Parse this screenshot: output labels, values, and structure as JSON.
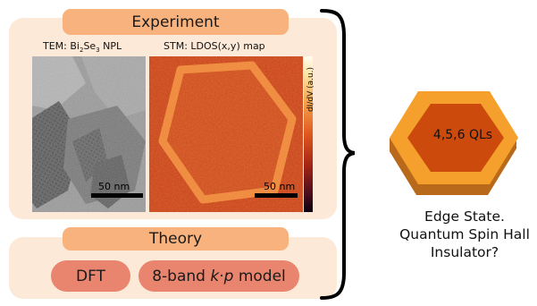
{
  "experiment": {
    "title": "Experiment",
    "tem_caption_pre": "TEM: Bi",
    "tem_caption_sub1": "2",
    "tem_caption_mid": "Se",
    "tem_caption_sub2": "3",
    "tem_caption_post": " NPL",
    "stm_caption": "STM: LDOS(x,y) map",
    "tem_scale": "50 nm",
    "stm_scale": "50 nm",
    "colorbar_label": "dI/dV (a.u.)"
  },
  "theory": {
    "title": "Theory",
    "methods": [
      "DFT",
      "8-band k·p model"
    ],
    "kp_k": "k",
    "kp_dot": "·",
    "kp_p": "p",
    "kp_rest": " model",
    "kp_prefix": "8-band "
  },
  "platelet": {
    "label": "4,5,6 QLs"
  },
  "result": {
    "lines": [
      "Edge State.",
      "Quantum Spin Hall",
      "Insulator?"
    ]
  },
  "colors": {
    "panel": "#fde9d7",
    "title_pill": "#f7b27d",
    "method_pill": "#e9856f",
    "hex_outer": "#f5a02c",
    "hex_inner": "#cc4a0c",
    "stm_base": "#c9421a",
    "stm_edge": "#f08a3c"
  }
}
